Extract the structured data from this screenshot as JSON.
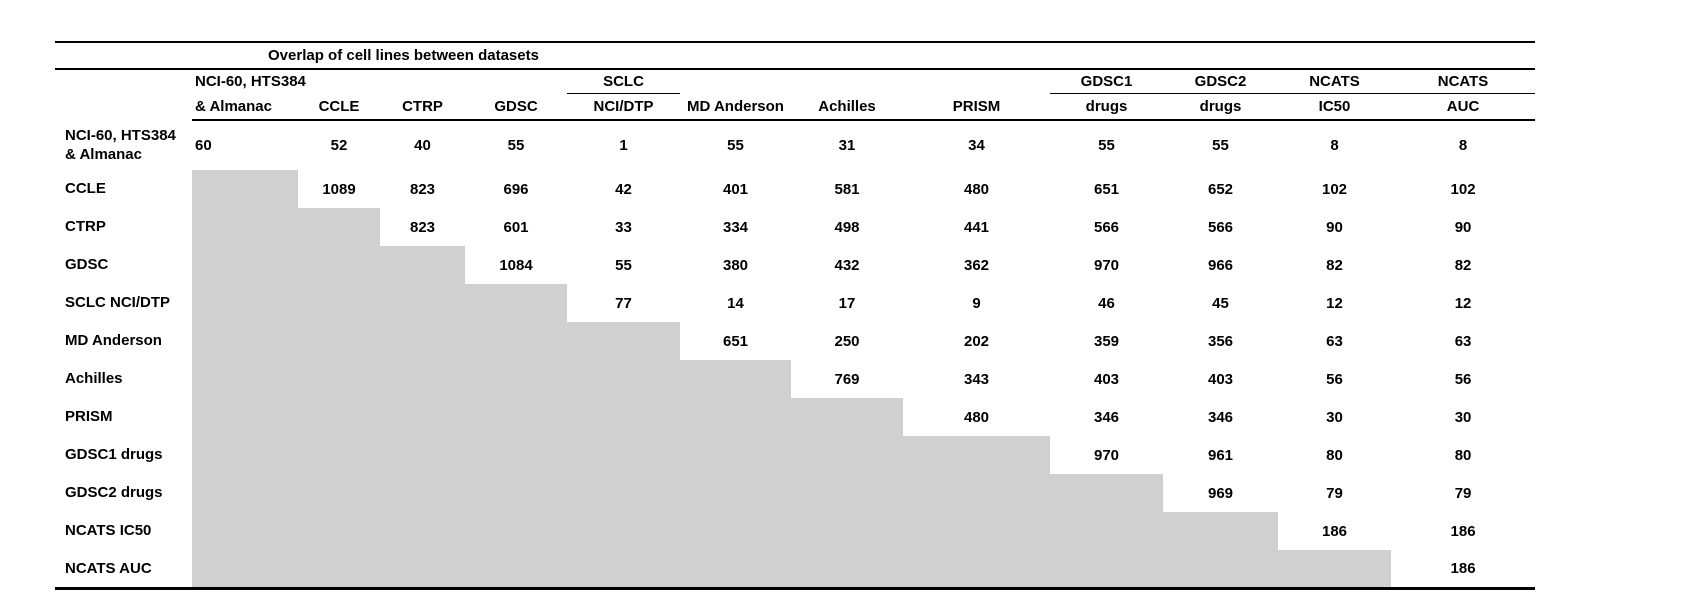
{
  "chart_data": {
    "type": "table",
    "title": "Overlap of cell lines between datasets",
    "shade_color": "#d0d0d0",
    "description_of_shading": "lower-triangle cells are shaded gray with no values",
    "column_headers_line1": [
      "NCI-60, HTS384",
      "",
      "",
      "",
      "SCLC",
      "",
      "",
      "",
      "GDSC1",
      "GDSC2",
      "NCATS",
      "NCATS"
    ],
    "column_headers_line2": [
      "& Almanac",
      "CCLE",
      "CTRP",
      "GDSC",
      "NCI/DTP",
      "MD Anderson",
      "Achilles",
      "PRISM",
      "drugs",
      "drugs",
      "IC50",
      "AUC"
    ],
    "rows": [
      {
        "label_lines": [
          "NCI-60, HTS384",
          "& Almanac"
        ],
        "cells": [
          60,
          52,
          40,
          55,
          1,
          55,
          31,
          34,
          55,
          55,
          8,
          8
        ]
      },
      {
        "label_lines": [
          "CCLE"
        ],
        "cells": [
          null,
          1089,
          823,
          696,
          42,
          401,
          581,
          480,
          651,
          652,
          102,
          102
        ]
      },
      {
        "label_lines": [
          "CTRP"
        ],
        "cells": [
          null,
          null,
          823,
          601,
          33,
          334,
          498,
          441,
          566,
          566,
          90,
          90
        ]
      },
      {
        "label_lines": [
          "GDSC"
        ],
        "cells": [
          null,
          null,
          null,
          1084,
          55,
          380,
          432,
          362,
          970,
          966,
          82,
          82
        ]
      },
      {
        "label_lines": [
          "SCLC NCI/DTP"
        ],
        "cells": [
          null,
          null,
          null,
          null,
          77,
          14,
          17,
          9,
          46,
          45,
          12,
          12
        ]
      },
      {
        "label_lines": [
          "MD Anderson"
        ],
        "cells": [
          null,
          null,
          null,
          null,
          null,
          651,
          250,
          202,
          359,
          356,
          63,
          63
        ]
      },
      {
        "label_lines": [
          "Achilles"
        ],
        "cells": [
          null,
          null,
          null,
          null,
          null,
          null,
          769,
          343,
          403,
          403,
          56,
          56
        ]
      },
      {
        "label_lines": [
          "PRISM"
        ],
        "cells": [
          null,
          null,
          null,
          null,
          null,
          null,
          null,
          480,
          346,
          346,
          30,
          30
        ]
      },
      {
        "label_lines": [
          "GDSC1 drugs"
        ],
        "cells": [
          null,
          null,
          null,
          null,
          null,
          null,
          null,
          null,
          970,
          961,
          80,
          80
        ]
      },
      {
        "label_lines": [
          "GDSC2 drugs"
        ],
        "cells": [
          null,
          null,
          null,
          null,
          null,
          null,
          null,
          null,
          null,
          969,
          79,
          79
        ]
      },
      {
        "label_lines": [
          "NCATS IC50"
        ],
        "cells": [
          null,
          null,
          null,
          null,
          null,
          null,
          null,
          null,
          null,
          null,
          186,
          186
        ]
      },
      {
        "label_lines": [
          "NCATS AUC"
        ],
        "cells": [
          null,
          null,
          null,
          null,
          null,
          null,
          null,
          null,
          null,
          null,
          null,
          186
        ]
      }
    ]
  }
}
